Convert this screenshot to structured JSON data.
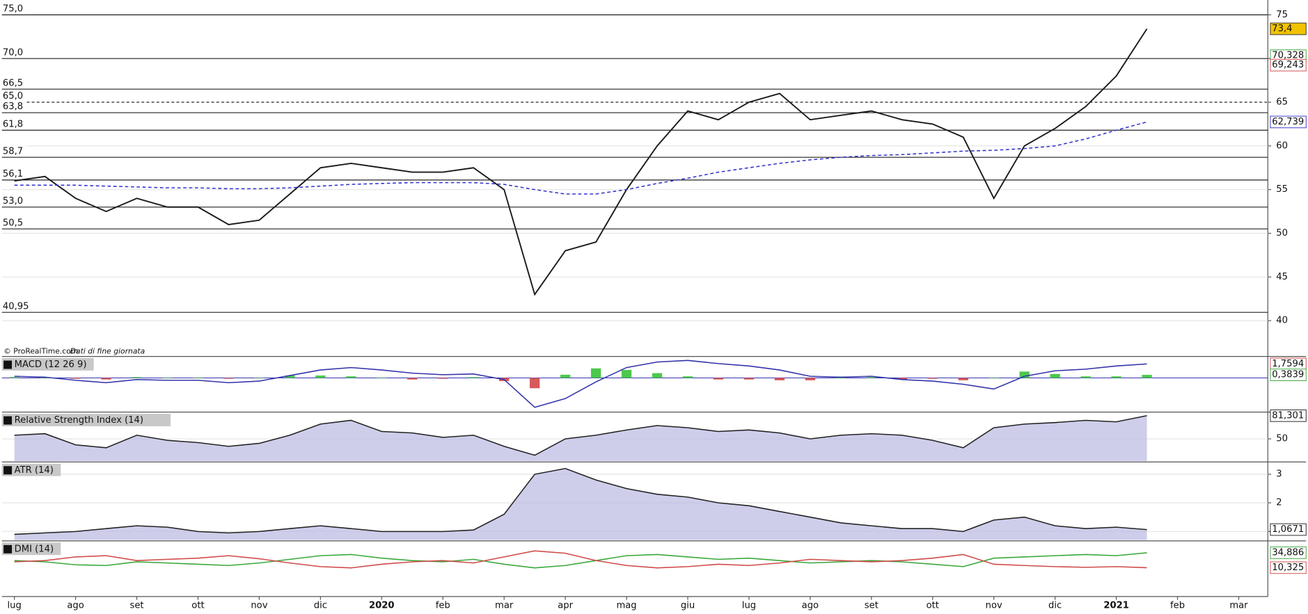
{
  "chart_data": [
    {
      "type": "line",
      "categories": [
        "lug",
        null,
        "ago",
        null,
        "set",
        null,
        "ott",
        null,
        "nov",
        null,
        "dic",
        null,
        "2020",
        null,
        "feb",
        null,
        "mar",
        null,
        "apr",
        null,
        "mag",
        null,
        "giu",
        null,
        "lug",
        null,
        "ago",
        null,
        "set",
        null,
        "ott",
        null,
        "nov",
        null,
        "dic",
        null,
        "2021",
        null,
        "feb",
        null,
        "mar",
        null
      ],
      "series": [
        {
          "color": "#1a1a1a",
          "values": [
            56,
            56.5,
            54,
            52.5,
            54,
            53,
            53,
            51,
            51.5,
            54.5,
            57.5,
            58,
            57.5,
            57,
            57,
            57.5,
            55,
            43,
            48,
            49,
            55,
            60,
            64,
            63,
            65,
            66,
            63,
            63.5,
            64,
            63,
            62.5,
            61,
            54,
            60,
            62,
            64.5,
            68,
            73.4,
            null,
            null,
            null,
            null
          ]
        },
        {
          "color": "#3333cc",
          "dashed": true,
          "values": [
            55.5,
            55.5,
            55.5,
            55.4,
            55.3,
            55.2,
            55.2,
            55.1,
            55.1,
            55.2,
            55.4,
            55.6,
            55.7,
            55.8,
            55.8,
            55.8,
            55.6,
            55.0,
            54.5,
            54.5,
            55.0,
            55.7,
            56.3,
            57.0,
            57.5,
            58.0,
            58.4,
            58.7,
            58.9,
            59.0,
            59.2,
            59.4,
            59.5,
            59.7,
            60.0,
            60.8,
            61.8,
            62.739,
            null,
            null,
            null,
            null
          ]
        }
      ],
      "ylim": [
        36,
        76.7
      ],
      "yticks": [
        40,
        45,
        50,
        55,
        60,
        65,
        70,
        75
      ],
      "levels": [
        {
          "value": 75,
          "label": "75,0"
        },
        {
          "value": 70,
          "label": "70,0"
        },
        {
          "value": 66.5,
          "label": "66,5"
        },
        {
          "value": 65,
          "label": "65,0",
          "style": "dashed"
        },
        {
          "value": 63.8,
          "label": "63,8"
        },
        {
          "value": 61.8,
          "label": "61,8"
        },
        {
          "value": 58.7,
          "label": "58,7"
        },
        {
          "value": 56.1,
          "label": "56,1"
        },
        {
          "value": 53,
          "label": "53,0"
        },
        {
          "value": 50.5,
          "label": "50,5"
        },
        {
          "value": 40.95,
          "label": "40,95"
        }
      ],
      "last_values": [
        {
          "value": 73.4,
          "label": "73,4",
          "color": "#f2c200"
        },
        {
          "value": 70.328,
          "label": "70,328",
          "color": "#3aa83a"
        },
        {
          "value": 69.243,
          "label": "69,243",
          "color": "#d04a4a"
        },
        {
          "value": 62.739,
          "label": "62,739",
          "color": "#3333cc"
        }
      ],
      "footnote": "© ProRealTime.com",
      "footnote_note": "Dati di fine giornata"
    },
    {
      "type": "line",
      "title": "MACD (12 26 9)",
      "series": [
        {
          "color": "#3333aa",
          "values": [
            0.2,
            0.1,
            -0.3,
            -0.6,
            -0.2,
            -0.3,
            -0.3,
            -0.6,
            -0.4,
            0.3,
            1.0,
            1.3,
            1.0,
            0.6,
            0.4,
            0.5,
            -0.2,
            -3.7,
            -2.6,
            -0.5,
            1.3,
            2.0,
            2.2,
            1.8,
            1.5,
            1.0,
            0.2,
            0.1,
            0.2,
            -0.2,
            -0.4,
            -0.8,
            -1.4,
            0.2,
            0.9,
            1.1,
            1.5,
            1.7594,
            null,
            null,
            null,
            null
          ]
        }
      ],
      "bars": [
        0.1,
        0,
        -0.1,
        -0.2,
        0.1,
        0,
        0,
        -0.1,
        0,
        0.3,
        0.3,
        0.2,
        0,
        -0.2,
        -0.1,
        0.1,
        -0.4,
        -1.3,
        0.4,
        1.2,
        1.0,
        0.6,
        0.2,
        -0.2,
        -0.2,
        -0.3,
        -0.3,
        0,
        0.1,
        -0.2,
        -0.1,
        -0.3,
        0,
        0.8,
        0.5,
        0.2,
        0.2,
        0.3839,
        null,
        null,
        null,
        null
      ],
      "ylim": [
        -4.2,
        2.6
      ],
      "yticks": [],
      "last_values": [
        {
          "value": 1.7594,
          "label": "1,7594",
          "color": "#d04a4a"
        },
        {
          "value": 0.3839,
          "label": "0,3839",
          "color": "#3aa83a"
        }
      ]
    },
    {
      "type": "line",
      "title": "Relative Strength Index (14)",
      "area": true,
      "series": [
        {
          "color": "#222222",
          "values": [
            55,
            57,
            42,
            38,
            55,
            48,
            45,
            40,
            44,
            55,
            70,
            75,
            60,
            58,
            52,
            55,
            40,
            28,
            50,
            55,
            62,
            68,
            65,
            60,
            62,
            58,
            50,
            55,
            57,
            55,
            48,
            38,
            65,
            70,
            72,
            75,
            73,
            81.301,
            null,
            null,
            null,
            null
          ]
        }
      ],
      "ylim": [
        20,
        85
      ],
      "yticks": [
        50
      ],
      "last_values": [
        {
          "value": 81.301,
          "label": "81,301",
          "color": "#222222"
        }
      ]
    },
    {
      "type": "line",
      "title": "ATR (14)",
      "area": true,
      "series": [
        {
          "color": "#222222",
          "values": [
            0.9,
            0.95,
            1.0,
            1.1,
            1.2,
            1.15,
            1.0,
            0.95,
            1.0,
            1.1,
            1.2,
            1.1,
            1.0,
            1.0,
            1.0,
            1.05,
            1.6,
            3.0,
            3.2,
            2.8,
            2.5,
            2.3,
            2.2,
            2.0,
            1.9,
            1.7,
            1.5,
            1.3,
            1.2,
            1.1,
            1.1,
            1.0,
            1.4,
            1.5,
            1.2,
            1.1,
            1.15,
            1.0671,
            null,
            null,
            null,
            null
          ]
        }
      ],
      "ylim": [
        0.7,
        3.4
      ],
      "yticks": [
        1,
        2,
        3
      ],
      "last_values": [
        {
          "value": 1.0671,
          "label": "1,0671",
          "color": "#222222"
        }
      ]
    },
    {
      "type": "line",
      "title": "DMI (14)",
      "series": [
        {
          "color": "#3aa83a",
          "values": [
            22,
            20,
            15,
            14,
            20,
            18,
            16,
            14,
            18,
            24,
            30,
            32,
            26,
            22,
            20,
            24,
            16,
            10,
            14,
            22,
            30,
            32,
            28,
            24,
            26,
            22,
            18,
            20,
            22,
            20,
            16,
            12,
            26,
            28,
            30,
            32,
            30,
            34.886,
            null,
            null,
            null,
            null
          ]
        },
        {
          "color": "#d04a4a",
          "values": [
            20,
            22,
            28,
            30,
            22,
            24,
            26,
            30,
            25,
            18,
            12,
            10,
            16,
            20,
            22,
            18,
            28,
            38,
            34,
            22,
            14,
            10,
            12,
            16,
            14,
            18,
            24,
            22,
            20,
            22,
            26,
            32,
            16,
            14,
            12,
            11,
            12,
            10.325,
            null,
            null,
            null,
            null
          ]
        }
      ],
      "ylim": [
        -33,
        53
      ],
      "yticks": [],
      "last_values": [
        {
          "value": 34.886,
          "label": "34,886",
          "color": "#3aa83a"
        },
        {
          "value": 10.325,
          "label": "10,325",
          "color": "#d04a4a"
        }
      ]
    }
  ]
}
